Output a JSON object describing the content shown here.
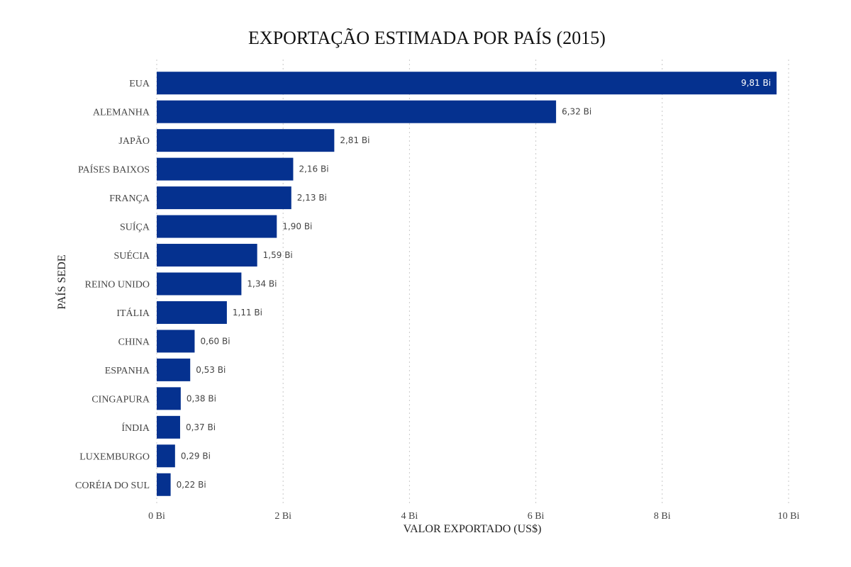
{
  "chart_data": {
    "type": "bar",
    "orientation": "horizontal",
    "title": "EXPORTAÇÃO ESTIMADA POR PAÍS (2015)",
    "xlabel": "VALOR EXPORTADO (US$)",
    "ylabel": "PAÍS SEDE",
    "categories": [
      "EUA",
      "ALEMANHA",
      "JAPÃO",
      "PAÍSES BAIXOS",
      "FRANÇA",
      "SUÍÇA",
      "SUÉCIA",
      "REINO UNIDO",
      "ITÁLIA",
      "CHINA",
      "ESPANHA",
      "CINGAPURA",
      "ÍNDIA",
      "LUXEMBURGO",
      "CORÉIA DO SUL"
    ],
    "values": [
      9.81,
      6.32,
      2.81,
      2.16,
      2.13,
      1.9,
      1.59,
      1.34,
      1.11,
      0.6,
      0.53,
      0.38,
      0.37,
      0.29,
      0.22
    ],
    "data_labels": [
      "9,81 Bi",
      "6,32 Bi",
      "2,81 Bi",
      "2,16 Bi",
      "2,13 Bi",
      "1,90 Bi",
      "1,59 Bi",
      "1,34 Bi",
      "1,11 Bi",
      "0,60 Bi",
      "0,53 Bi",
      "0,38 Bi",
      "0,37 Bi",
      "0,29 Bi",
      "0,22 Bi"
    ],
    "xticks": [
      0,
      2,
      4,
      6,
      8,
      10
    ],
    "xtick_labels": [
      "0 Bi",
      "2 Bi",
      "4 Bi",
      "6 Bi",
      "8 Bi",
      "10 Bi"
    ],
    "xlim": [
      0,
      10
    ],
    "grid": "vertical dotted",
    "legend": "none",
    "colors": {
      "bar": "#05318f",
      "inside_label": "#ffffff",
      "outside_label": "#444444",
      "grid": "#c8c8c8"
    }
  }
}
